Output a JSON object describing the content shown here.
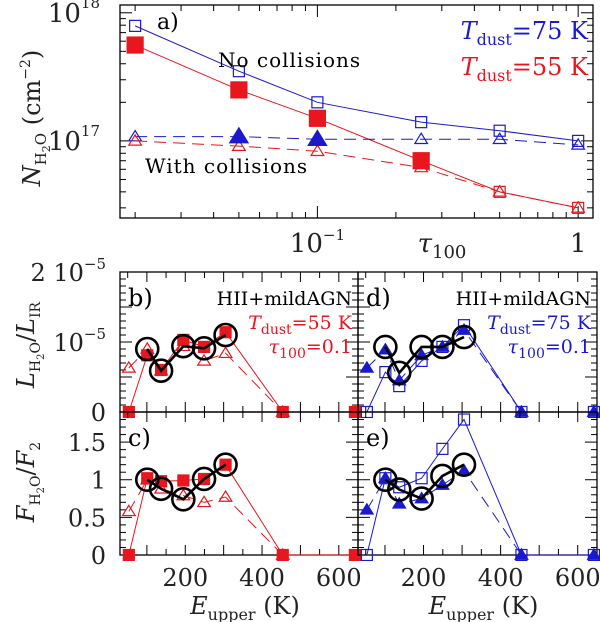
{
  "chart_data": [
    {
      "id": "a",
      "type": "line",
      "panel_label": "a)",
      "xscale": "log",
      "yscale": "log",
      "xlabel": "τ100",
      "ylabel": "N_H2O (cm^-2)",
      "xlim": [
        0.0175,
        1.14
      ],
      "ylim": [
        2.5e+16,
        1.15e+18
      ],
      "xticklabels": [
        {
          "value": 0.1,
          "text": "10",
          "sup": "−1"
        },
        {
          "value": 1,
          "text": "1",
          "sup": ""
        }
      ],
      "yticklabels": [
        {
          "value": 1e+18,
          "text": "10",
          "sup": "18"
        },
        {
          "value": 1e+17,
          "text": "10",
          "sup": "17"
        }
      ],
      "annotations": [
        {
          "text": "No collisions",
          "color": "#000000",
          "position": "upper-middle"
        },
        {
          "text": "With collisions",
          "color": "#000000",
          "position": "middle-left"
        }
      ],
      "legend": {
        "position": "top-right",
        "entries": [
          {
            "text_main": "T",
            "text_sub": "dust",
            "text_rest": "=75  K",
            "color": "#1a1acc"
          },
          {
            "text_main": "T",
            "text_sub": "dust",
            "text_rest": "=55  K",
            "color": "#e8161e"
          }
        ]
      },
      "x": [
        0.02,
        0.05,
        0.1,
        0.25,
        0.5,
        1.0
      ],
      "series": [
        {
          "name": "No collisions, Tdust=75 K",
          "color": "#1a1acc",
          "marker": "open-square",
          "line": "solid",
          "values": [
            7.9e+17,
            3.5e+17,
            2e+17,
            1.4e+17,
            1.2e+17,
            1e+17
          ]
        },
        {
          "name": "No collisions, Tdust=55 K",
          "color": "#e8161e",
          "marker": "open-square",
          "line": "solid",
          "values": [
            5.6e+17,
            2.5e+17,
            1.5e+17,
            7e+16,
            4e+16,
            3e+16
          ]
        },
        {
          "name": "With collisions, Tdust=75 K",
          "color": "#1a1acc",
          "marker": "open-triangle",
          "line": "dashed",
          "values": [
            1.08e+17,
            1.08e+17,
            1.03e+17,
            1.03e+17,
            1.03e+17,
            9.3e+16
          ]
        },
        {
          "name": "With collisions, Tdust=55 K",
          "color": "#e8161e",
          "marker": "open-triangle",
          "line": "dashed",
          "values": [
            1e+17,
            9.1e+16,
            8.3e+16,
            6.2e+16,
            4e+16,
            3e+16
          ]
        }
      ],
      "highlight": [
        {
          "name": "Best fit 55 K (filled squares)",
          "color": "#e8161e",
          "marker": "filled-square",
          "x": [
            0.02,
            0.05,
            0.1,
            0.25
          ],
          "values": [
            5.6e+17,
            2.5e+17,
            1.5e+17,
            7e+16
          ]
        },
        {
          "name": "Best fit 75 K (filled triangles)",
          "color": "#1a1acc",
          "marker": "filled-triangle",
          "x": [
            0.05,
            0.1
          ],
          "values": [
            1.08e+17,
            1.03e+17
          ]
        }
      ]
    },
    {
      "id": "b",
      "type": "line",
      "panel_label": "b)",
      "xlabel": "",
      "ylabel": "L_H2O / L_IR",
      "xlim": [
        30,
        650
      ],
      "ylim": [
        0,
        2e-05
      ],
      "yticklabels": [
        {
          "value": 0,
          "text": "0",
          "sup": ""
        },
        {
          "value": 1e-05,
          "text": "10",
          "sup": "−5"
        },
        {
          "value": 2e-05,
          "text": "2 10",
          "sup": "−5"
        }
      ],
      "text_block": [
        {
          "text": "HII+mildAGN",
          "color": "#000000"
        },
        {
          "text_main": "T",
          "text_sub": "dust",
          "text_rest": "=55  K",
          "color": "#e8161e"
        },
        {
          "text_main": "τ",
          "text_sub": "100",
          "text_rest": "=0.1",
          "color": "#e8161e"
        }
      ],
      "x": [
        53,
        101,
        137,
        195,
        249,
        305,
        454,
        642
      ],
      "series": [
        {
          "name": "Model, no collisions",
          "color": "#e8161e",
          "marker": "filled-square",
          "line": "solid",
          "values": [
            0,
            8.1e-06,
            6e-06,
            1.03e-05,
            9.3e-06,
            1.14e-05,
            0,
            0
          ]
        },
        {
          "name": "Model, with collisions",
          "color": "#e8161e",
          "marker": "open-triangle",
          "line": "dashed",
          "values": [
            6.3e-06,
            9e-06,
            5.9e-06,
            9.4e-06,
            7.3e-06,
            8.4e-06,
            0,
            null
          ]
        },
        {
          "name": "Observed",
          "color": "#000000",
          "marker": "open-circle",
          "line": "thick-solid",
          "values": [
            null,
            9e-06,
            5.9e-06,
            9.4e-06,
            9.1e-06,
            1.1e-05,
            null,
            null
          ]
        }
      ]
    },
    {
      "id": "c",
      "type": "line",
      "panel_label": "c)",
      "xlabel": "E_upper (K)",
      "ylabel": "F_H2O / F_2",
      "xlim": [
        30,
        650
      ],
      "ylim": [
        0,
        1.9
      ],
      "xticklabels": [
        {
          "value": 200,
          "text": "200"
        },
        {
          "value": 400,
          "text": "400"
        },
        {
          "value": 600,
          "text": "600"
        }
      ],
      "yticklabels": [
        {
          "value": 0,
          "text": "0"
        },
        {
          "value": 0.5,
          "text": "0.5"
        },
        {
          "value": 1,
          "text": "1"
        },
        {
          "value": 1.5,
          "text": "1.5"
        }
      ],
      "x": [
        53,
        101,
        137,
        195,
        249,
        305,
        454,
        642
      ],
      "series": [
        {
          "name": "Model, no collisions",
          "color": "#e8161e",
          "marker": "filled-square",
          "line": "solid",
          "values": [
            0,
            1.02,
            0.98,
            0.99,
            1.01,
            1.2,
            0,
            0
          ]
        },
        {
          "name": "Model, with collisions",
          "color": "#e8161e",
          "marker": "open-triangle",
          "line": "dashed",
          "values": [
            0.58,
            1.0,
            0.88,
            0.79,
            0.7,
            0.77,
            0,
            null
          ]
        },
        {
          "name": "Observed",
          "color": "#000000",
          "marker": "open-circle",
          "line": "thick-solid",
          "values": [
            null,
            1.0,
            0.88,
            0.74,
            1.01,
            1.2,
            null,
            null
          ]
        }
      ]
    },
    {
      "id": "d",
      "type": "line",
      "panel_label": "d)",
      "xlabel": "",
      "ylabel": "",
      "xlim": [
        30,
        650
      ],
      "ylim": [
        0,
        2e-05
      ],
      "text_block": [
        {
          "text": "HII+mildAGN",
          "color": "#000000"
        },
        {
          "text_main": "T",
          "text_sub": "dust",
          "text_rest": "=75  K",
          "color": "#1a1acc"
        },
        {
          "text_main": "τ",
          "text_sub": "100",
          "text_rest": "=0.1",
          "color": "#1a1acc"
        }
      ],
      "x": [
        53,
        101,
        137,
        195,
        249,
        305,
        454,
        642
      ],
      "series": [
        {
          "name": "Model, no collisions",
          "color": "#1a1acc",
          "marker": "open-square",
          "line": "solid",
          "values": [
            0,
            5.7e-06,
            3.7e-06,
            7.3e-06,
            9.3e-06,
            1.24e-05,
            0,
            0
          ]
        },
        {
          "name": "Model, with collisions",
          "color": "#1a1acc",
          "marker": "filled-triangle",
          "line": "dashed",
          "values": [
            6.3e-06,
            8.9e-06,
            4.5e-06,
            8.1e-06,
            9.3e-06,
            1.17e-05,
            0,
            0
          ]
        },
        {
          "name": "Observed",
          "color": "#000000",
          "marker": "open-circle",
          "line": "thick-solid",
          "values": [
            null,
            9.3e-06,
            5.6e-06,
            9.3e-06,
            9.3e-06,
            1.07e-05,
            null,
            null
          ]
        }
      ]
    },
    {
      "id": "e",
      "type": "line",
      "panel_label": "e)",
      "xlabel": "E_upper (K)",
      "ylabel": "",
      "xlim": [
        30,
        650
      ],
      "ylim": [
        0,
        1.9
      ],
      "xticklabels": [
        {
          "value": 200,
          "text": "200"
        },
        {
          "value": 400,
          "text": "400"
        },
        {
          "value": 600,
          "text": "600"
        }
      ],
      "x": [
        53,
        101,
        137,
        195,
        249,
        305,
        454,
        642
      ],
      "series": [
        {
          "name": "Model, no collisions",
          "color": "#1a1acc",
          "marker": "open-square",
          "line": "solid",
          "values": [
            0,
            1.02,
            0.9,
            1.02,
            1.41,
            1.8,
            0,
            0
          ]
        },
        {
          "name": "Model, with collisions",
          "color": "#1a1acc",
          "marker": "filled-triangle",
          "line": "dashed",
          "values": [
            0.6,
            1.02,
            0.68,
            0.75,
            0.93,
            1.12,
            0,
            0
          ]
        },
        {
          "name": "Observed",
          "color": "#000000",
          "marker": "open-circle",
          "line": "thick-solid",
          "values": [
            null,
            1.0,
            0.87,
            0.75,
            1.05,
            1.2,
            null,
            null
          ]
        }
      ]
    }
  ]
}
